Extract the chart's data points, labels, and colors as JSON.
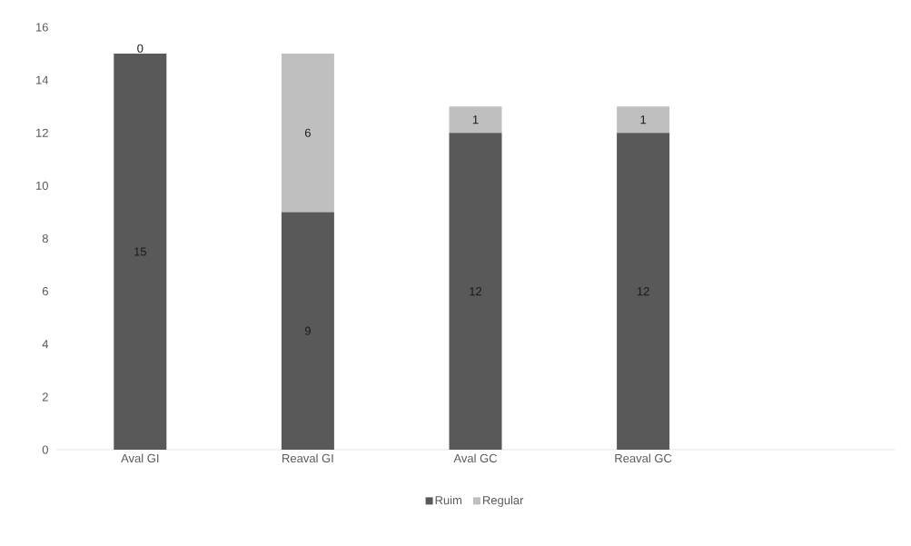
{
  "chart_data": {
    "type": "bar",
    "stacked": true,
    "categories": [
      "Aval GI",
      "Reaval GI",
      "Aval GC",
      "Reaval GC",
      null
    ],
    "series": [
      {
        "name": "Ruim",
        "color": "#595959",
        "values": [
          15,
          9,
          12,
          12,
          null
        ],
        "value_labels": [
          "15",
          "9",
          "12",
          "12",
          null
        ]
      },
      {
        "name": "Regular",
        "color": "#bfbfbf",
        "values": [
          0,
          6,
          1,
          1,
          null
        ],
        "value_labels": [
          "0",
          "6",
          "1",
          "1",
          null
        ]
      }
    ],
    "ylim": [
      0,
      16
    ],
    "yticks": [
      0,
      2,
      4,
      6,
      8,
      10,
      12,
      14,
      16
    ],
    "legend": "bottom",
    "grid": false
  }
}
